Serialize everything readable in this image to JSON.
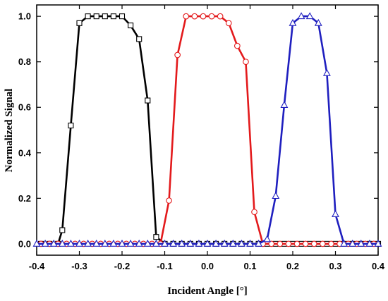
{
  "chart_data": {
    "type": "line",
    "title": "",
    "xlabel": "Incident Angle [°]",
    "ylabel": "Normalized Signal",
    "xlim": [
      -0.4,
      0.4
    ],
    "ylim": [
      -0.05,
      1.05
    ],
    "x_ticks": [
      -0.4,
      -0.3,
      -0.2,
      -0.1,
      0.0,
      0.1,
      0.2,
      0.3,
      0.4
    ],
    "x_tick_labels": [
      "-0.4",
      "-0.3",
      "-0.2",
      "-0.1",
      "0.0",
      "0.1",
      "0.2",
      "0.3",
      "0.4"
    ],
    "y_ticks": [
      0.0,
      0.2,
      0.4,
      0.6,
      0.8,
      1.0
    ],
    "y_tick_labels": [
      "0.0",
      "0.2",
      "0.4",
      "0.6",
      "0.8",
      "1.0"
    ],
    "grid": false,
    "legend": "none",
    "series": [
      {
        "color": "#000000",
        "marker": "square",
        "x": [
          -0.39,
          -0.37,
          -0.35,
          -0.34,
          -0.32,
          -0.3,
          -0.28,
          -0.26,
          -0.24,
          -0.22,
          -0.2,
          -0.18,
          -0.16,
          -0.14,
          -0.12,
          -0.1,
          -0.08,
          -0.06,
          -0.04,
          -0.02,
          0.0,
          0.02,
          0.04,
          0.06,
          0.08,
          0.1,
          0.12,
          0.14,
          0.16,
          0.18,
          0.2,
          0.22,
          0.24,
          0.26,
          0.28,
          0.3,
          0.32,
          0.34,
          0.36,
          0.38,
          0.4
        ],
        "y": [
          0,
          0,
          0,
          0.06,
          0.52,
          0.97,
          1.0,
          1.0,
          1.0,
          1.0,
          1.0,
          0.96,
          0.9,
          0.63,
          0.03,
          0,
          0,
          0,
          0,
          0,
          0,
          0,
          0,
          0,
          0,
          0,
          0,
          0,
          0,
          0,
          0,
          0,
          0,
          0,
          0,
          0,
          0,
          0,
          0,
          0,
          0
        ]
      },
      {
        "color": "#e31a1c",
        "marker": "circle",
        "x": [
          -0.39,
          -0.37,
          -0.35,
          -0.33,
          -0.31,
          -0.29,
          -0.27,
          -0.25,
          -0.23,
          -0.21,
          -0.19,
          -0.17,
          -0.15,
          -0.13,
          -0.11,
          -0.09,
          -0.07,
          -0.05,
          -0.03,
          -0.01,
          0.01,
          0.03,
          0.05,
          0.07,
          0.09,
          0.11,
          0.13,
          0.15,
          0.17,
          0.19,
          0.21,
          0.23,
          0.25,
          0.27,
          0.29,
          0.31,
          0.33,
          0.35,
          0.37,
          0.39
        ],
        "y": [
          0,
          0,
          0,
          0,
          0,
          0,
          0,
          0,
          0,
          0,
          0,
          0,
          0,
          0,
          0,
          0.19,
          0.83,
          1.0,
          1.0,
          1.0,
          1.0,
          1.0,
          0.97,
          0.87,
          0.8,
          0.14,
          0,
          0,
          0,
          0,
          0,
          0,
          0,
          0,
          0,
          0,
          0,
          0,
          0,
          0
        ]
      },
      {
        "color": "#1f1fbf",
        "marker": "triangle",
        "x": [
          -0.4,
          -0.38,
          -0.36,
          -0.34,
          -0.32,
          -0.3,
          -0.28,
          -0.26,
          -0.24,
          -0.22,
          -0.2,
          -0.18,
          -0.16,
          -0.14,
          -0.12,
          -0.1,
          -0.08,
          -0.06,
          -0.04,
          -0.02,
          0.0,
          0.02,
          0.04,
          0.06,
          0.08,
          0.1,
          0.12,
          0.14,
          0.16,
          0.18,
          0.2,
          0.22,
          0.24,
          0.26,
          0.28,
          0.3,
          0.32,
          0.34,
          0.36,
          0.38,
          0.4
        ],
        "y": [
          0,
          0,
          0,
          0,
          0,
          0,
          0,
          0,
          0,
          0,
          0,
          0,
          0,
          0,
          0,
          0,
          0,
          0,
          0,
          0,
          0,
          0,
          0,
          0,
          0,
          0,
          0,
          0.02,
          0.21,
          0.61,
          0.97,
          1.0,
          1.0,
          0.97,
          0.75,
          0.13,
          0,
          0,
          0,
          0,
          0
        ]
      }
    ]
  }
}
